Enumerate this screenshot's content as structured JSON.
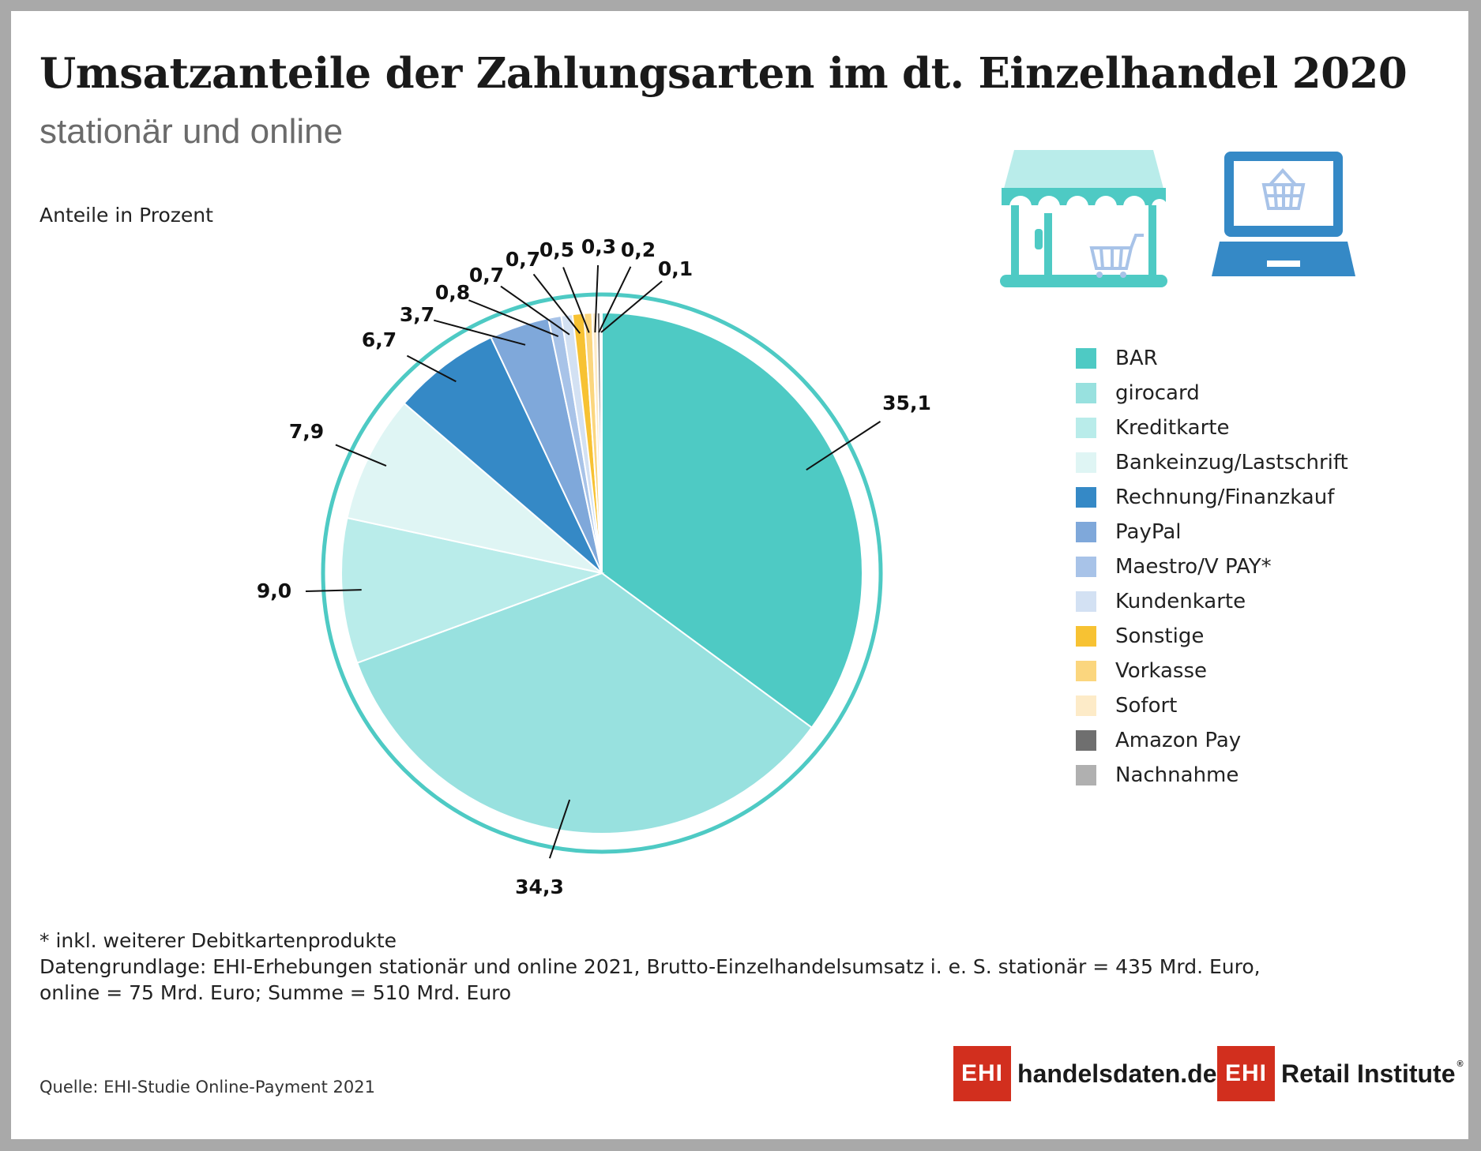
{
  "title": "Umsatzanteile der Zahlungsarten im dt. Einzelhandel 2020",
  "subtitle": "stationär und online",
  "unit_label": "Anteile in Prozent",
  "chart_data": {
    "type": "pie",
    "title": "Umsatzanteile der Zahlungsarten im dt. Einzelhandel 2020",
    "subtitle": "stationär und online",
    "unit": "Anteile in Prozent",
    "legend_position": "right",
    "slices": [
      {
        "label": "BAR",
        "value": 35.1,
        "value_label": "35,1",
        "color": "#4ecac4"
      },
      {
        "label": "girocard",
        "value": 34.3,
        "value_label": "34,3",
        "color": "#98e1df"
      },
      {
        "label": "Kreditkarte",
        "value": 9.0,
        "value_label": "9,0",
        "color": "#b9ecea"
      },
      {
        "label": "Bankeinzug/Lastschrift",
        "value": 7.9,
        "value_label": "7,9",
        "color": "#dff5f4"
      },
      {
        "label": "Rechnung/Finanzkauf",
        "value": 6.7,
        "value_label": "6,7",
        "color": "#3589c6"
      },
      {
        "label": "PayPal",
        "value": 3.7,
        "value_label": "3,7",
        "color": "#7fa8da"
      },
      {
        "label": "Maestro/V PAY*",
        "value": 0.8,
        "value_label": "0,8",
        "color": "#a8c3e8"
      },
      {
        "label": "Kundenkarte",
        "value": 0.7,
        "value_label": "0,7",
        "color": "#d3e1f3"
      },
      {
        "label": "Sonstige",
        "value": 0.7,
        "value_label": "0,7",
        "color": "#f7c233"
      },
      {
        "label": "Vorkasse",
        "value": 0.5,
        "value_label": "0,5",
        "color": "#fbd67e"
      },
      {
        "label": "Sofort",
        "value": 0.3,
        "value_label": "0,3",
        "color": "#fdebc8"
      },
      {
        "label": "Amazon Pay",
        "value": 0.2,
        "value_label": "0,2",
        "color": "#6f6f6f"
      },
      {
        "label": "Nachnahme",
        "value": 0.1,
        "value_label": "0,1",
        "color": "#b0b0b0"
      }
    ]
  },
  "icons": {
    "store": "store-with-shopping-cart-icon",
    "laptop": "laptop-with-shopping-basket-icon"
  },
  "colors": {
    "ring": "#4ecac4",
    "logo_red": "#d22f1e",
    "store_icon": "#4ecac4",
    "laptop_icon": "#3589c6"
  },
  "footnote": "* inkl. weiterer Debitkartenprodukte",
  "data_basis_line1": "Datengrundlage: EHI-Erhebungen stationär und online 2021, Brutto-Einzelhandelsumsatz i. e. S. stationär = 435 Mrd. Euro,",
  "data_basis_line2": "online = 75 Mrd. Euro; Summe = 510 Mrd. Euro",
  "source": "Quelle: EHI-Studie Online-Payment 2021",
  "logos": {
    "logo1_box": "EHI",
    "logo1_text": "handelsdaten.de",
    "logo2_box": "EHI",
    "logo2_text": "Retail Institute",
    "logo2_reg": "®"
  }
}
